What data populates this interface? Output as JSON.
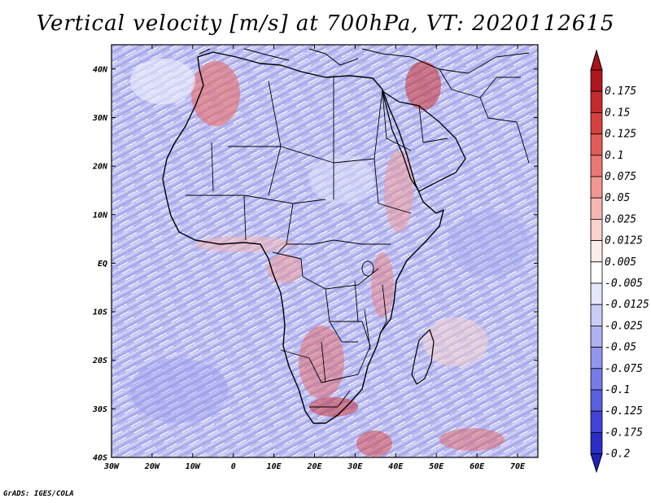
{
  "title": "Vertical velocity [m/s] at 700hPa, VT: 2020112615",
  "credit": "GrADS: IGES/COLA",
  "map": {
    "lon_range": [
      -30,
      75
    ],
    "lat_range": [
      -40,
      45
    ],
    "lat_ticks": [
      {
        "value": 40,
        "label": "40N"
      },
      {
        "value": 30,
        "label": "30N"
      },
      {
        "value": 20,
        "label": "20N"
      },
      {
        "value": 10,
        "label": "10N"
      },
      {
        "value": 0,
        "label": "EQ"
      },
      {
        "value": -10,
        "label": "10S"
      },
      {
        "value": -20,
        "label": "20S"
      },
      {
        "value": -30,
        "label": "30S"
      },
      {
        "value": -40,
        "label": "40S"
      }
    ],
    "lon_ticks": [
      {
        "value": -30,
        "label": "30W"
      },
      {
        "value": -20,
        "label": "20W"
      },
      {
        "value": -10,
        "label": "10W"
      },
      {
        "value": 0,
        "label": "0"
      },
      {
        "value": 10,
        "label": "10E"
      },
      {
        "value": 20,
        "label": "20E"
      },
      {
        "value": 30,
        "label": "30E"
      },
      {
        "value": 40,
        "label": "40E"
      },
      {
        "value": 50,
        "label": "50E"
      },
      {
        "value": 60,
        "label": "60E"
      },
      {
        "value": 70,
        "label": "70E"
      }
    ]
  },
  "colorbar": {
    "levels": [
      {
        "label": "0.175",
        "color": "#b0161e"
      },
      {
        "label": "0.15",
        "color": "#c62a2e"
      },
      {
        "label": "0.125",
        "color": "#d8403f"
      },
      {
        "label": "0.1",
        "color": "#e45a57"
      },
      {
        "label": "0.075",
        "color": "#ec7773"
      },
      {
        "label": "0.05",
        "color": "#f29691"
      },
      {
        "label": "0.025",
        "color": "#f6b5b0"
      },
      {
        "label": "0.0125",
        "color": "#f9d1cd"
      },
      {
        "label": "0.005",
        "color": "#fcebe9"
      },
      {
        "label": "-0.005",
        "color": "#ffffff"
      },
      {
        "label": "-0.0125",
        "color": "#e4e6fb"
      },
      {
        "label": "-0.025",
        "color": "#c9ccf6"
      },
      {
        "label": "-0.05",
        "color": "#aeb1f2"
      },
      {
        "label": "-0.075",
        "color": "#9296ee"
      },
      {
        "label": "-0.1",
        "color": "#767aea"
      },
      {
        "label": "-0.125",
        "color": "#5b5fe2"
      },
      {
        "label": "-0.175",
        "color": "#4044d8"
      },
      {
        "label": "-0.2",
        "color": "#2a2dc8"
      }
    ],
    "top_cap_color": "#a8141a",
    "bottom_cap_color": "#1e22b8"
  }
}
